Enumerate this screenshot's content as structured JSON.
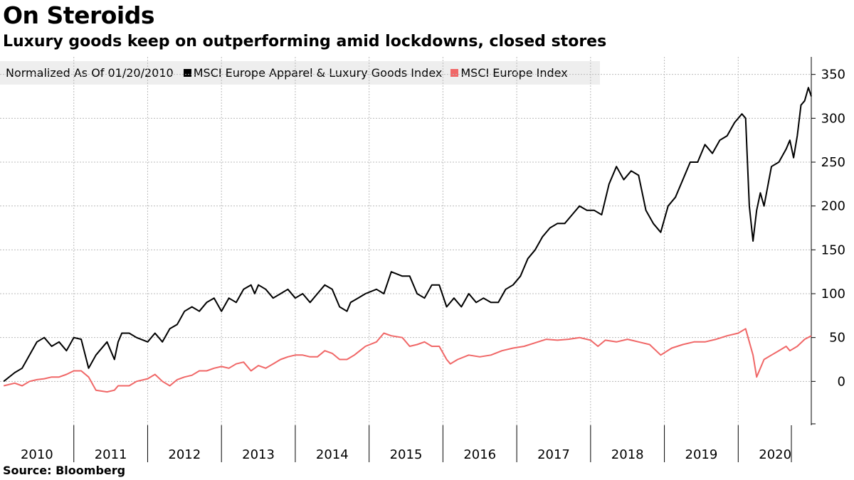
{
  "title": "On Steroids",
  "subtitle": "Luxury goods keep on outperforming amid lockdowns, closed stores",
  "legend": {
    "note": "Normalized As Of 01/20/2010",
    "items": [
      {
        "label": "MSCI Europe Apparel & Luxury Goods Index",
        "color": "#000000"
      },
      {
        "label": "MSCI Europe Index",
        "color": "#f06767"
      }
    ]
  },
  "source": "Source:  Bloomberg",
  "chart_data": {
    "type": "line",
    "title": "On Steroids",
    "subtitle": "Luxury goods keep on outperforming amid lockdowns, closed stores",
    "xlabel": "",
    "ylabel": "",
    "x_categories": [
      "2010",
      "2011",
      "2012",
      "2013",
      "2014",
      "2015",
      "2016",
      "2017",
      "2018",
      "2019",
      "2020"
    ],
    "xlim": [
      2010.0,
      2020.99
    ],
    "ylim": [
      -50,
      370
    ],
    "yticks": [
      350,
      300,
      250,
      200,
      150,
      100,
      50,
      0
    ],
    "grid": true,
    "y_axis_side": "right",
    "legend_position": "top-left",
    "series": [
      {
        "name": "MSCI Europe Apparel & Luxury Goods Index",
        "color": "#000000",
        "x": [
          2010.05,
          2010.2,
          2010.3,
          2010.4,
          2010.5,
          2010.6,
          2010.7,
          2010.8,
          2010.9,
          2011.0,
          2011.1,
          2011.2,
          2011.3,
          2011.45,
          2011.55,
          2011.6,
          2011.65,
          2011.75,
          2011.85,
          2012.0,
          2012.1,
          2012.2,
          2012.3,
          2012.4,
          2012.5,
          2012.6,
          2012.7,
          2012.8,
          2012.9,
          2013.0,
          2013.1,
          2013.2,
          2013.3,
          2013.4,
          2013.45,
          2013.5,
          2013.6,
          2013.7,
          2013.8,
          2013.9,
          2014.0,
          2014.1,
          2014.2,
          2014.3,
          2014.4,
          2014.5,
          2014.6,
          2014.7,
          2014.75,
          2014.85,
          2014.95,
          2015.1,
          2015.2,
          2015.3,
          2015.45,
          2015.55,
          2015.65,
          2015.75,
          2015.85,
          2015.95,
          2016.05,
          2016.15,
          2016.25,
          2016.35,
          2016.45,
          2016.55,
          2016.65,
          2016.75,
          2016.85,
          2016.95,
          2017.05,
          2017.15,
          2017.25,
          2017.35,
          2017.45,
          2017.55,
          2017.65,
          2017.75,
          2017.85,
          2017.95,
          2018.05,
          2018.15,
          2018.25,
          2018.35,
          2018.45,
          2018.55,
          2018.65,
          2018.75,
          2018.85,
          2018.95,
          2019.05,
          2019.15,
          2019.25,
          2019.35,
          2019.45,
          2019.55,
          2019.65,
          2019.75,
          2019.85,
          2019.95,
          2020.05,
          2020.1,
          2020.15,
          2020.2,
          2020.25,
          2020.3,
          2020.35,
          2020.45,
          2020.55,
          2020.65,
          2020.7,
          2020.75,
          2020.8,
          2020.85,
          2020.9,
          2020.95,
          2020.99
        ],
        "y": [
          0,
          10,
          15,
          30,
          45,
          50,
          40,
          45,
          35,
          50,
          48,
          15,
          30,
          45,
          25,
          45,
          55,
          55,
          50,
          45,
          55,
          45,
          60,
          65,
          80,
          85,
          80,
          90,
          95,
          80,
          95,
          90,
          105,
          110,
          100,
          110,
          105,
          95,
          100,
          105,
          95,
          100,
          90,
          100,
          110,
          105,
          85,
          80,
          90,
          95,
          100,
          105,
          100,
          125,
          120,
          120,
          100,
          95,
          110,
          110,
          85,
          95,
          85,
          100,
          90,
          95,
          90,
          90,
          105,
          110,
          120,
          140,
          150,
          165,
          175,
          180,
          180,
          190,
          200,
          195,
          195,
          190,
          225,
          245,
          230,
          240,
          235,
          195,
          180,
          170,
          200,
          210,
          230,
          250,
          250,
          270,
          260,
          275,
          280,
          295,
          305,
          300,
          200,
          160,
          195,
          215,
          200,
          245,
          250,
          265,
          275,
          255,
          280,
          315,
          320,
          335,
          325
        ]
      },
      {
        "name": "MSCI Europe Index",
        "color": "#f06767",
        "x": [
          2010.05,
          2010.2,
          2010.3,
          2010.4,
          2010.5,
          2010.6,
          2010.7,
          2010.8,
          2010.9,
          2011.0,
          2011.1,
          2011.2,
          2011.3,
          2011.45,
          2011.55,
          2011.6,
          2011.75,
          2011.85,
          2012.0,
          2012.1,
          2012.2,
          2012.3,
          2012.4,
          2012.5,
          2012.6,
          2012.7,
          2012.8,
          2012.9,
          2013.0,
          2013.1,
          2013.2,
          2013.3,
          2013.4,
          2013.5,
          2013.6,
          2013.7,
          2013.8,
          2013.9,
          2014.0,
          2014.1,
          2014.2,
          2014.3,
          2014.4,
          2014.5,
          2014.6,
          2014.7,
          2014.8,
          2014.95,
          2015.1,
          2015.2,
          2015.3,
          2015.45,
          2015.55,
          2015.65,
          2015.75,
          2015.85,
          2015.95,
          2016.05,
          2016.1,
          2016.2,
          2016.35,
          2016.5,
          2016.65,
          2016.8,
          2016.95,
          2017.1,
          2017.25,
          2017.4,
          2017.55,
          2017.7,
          2017.85,
          2018.0,
          2018.1,
          2018.2,
          2018.35,
          2018.5,
          2018.65,
          2018.8,
          2018.95,
          2019.1,
          2019.25,
          2019.4,
          2019.55,
          2019.7,
          2019.85,
          2020.0,
          2020.1,
          2020.2,
          2020.25,
          2020.35,
          2020.45,
          2020.55,
          2020.65,
          2020.7,
          2020.8,
          2020.9,
          2020.99
        ],
        "y": [
          -5,
          -2,
          -5,
          0,
          2,
          3,
          5,
          5,
          8,
          12,
          12,
          5,
          -10,
          -12,
          -10,
          -5,
          -5,
          0,
          3,
          8,
          0,
          -5,
          2,
          5,
          7,
          12,
          12,
          15,
          17,
          15,
          20,
          22,
          12,
          18,
          15,
          20,
          25,
          28,
          30,
          30,
          28,
          28,
          35,
          32,
          25,
          25,
          30,
          40,
          45,
          55,
          52,
          50,
          40,
          42,
          45,
          40,
          40,
          25,
          20,
          25,
          30,
          28,
          30,
          35,
          38,
          40,
          44,
          48,
          47,
          48,
          50,
          47,
          40,
          47,
          45,
          48,
          45,
          42,
          30,
          38,
          42,
          45,
          45,
          48,
          52,
          55,
          60,
          30,
          5,
          25,
          30,
          35,
          40,
          35,
          40,
          48,
          52
        ]
      }
    ]
  }
}
